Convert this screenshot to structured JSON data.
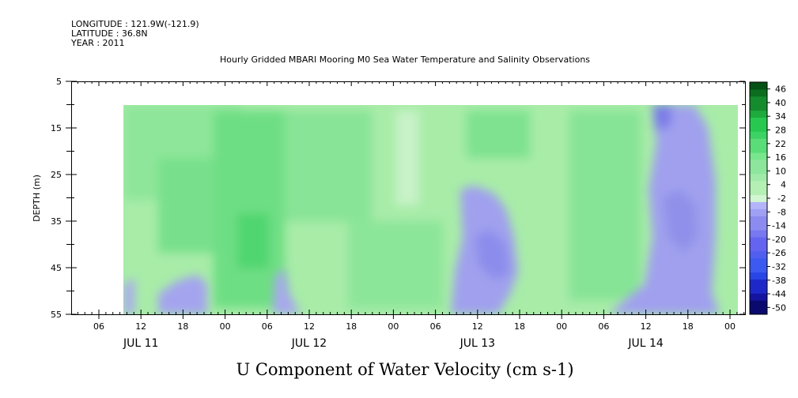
{
  "header": {
    "longitude": "LONGITUDE : 121.9W(-121.9)",
    "latitude": "LATITUDE : 36.8N",
    "year": "YEAR : 2011"
  },
  "chart_data": {
    "type": "heatmap",
    "title": "Hourly Gridded MBARI Mooring M0 Sea Water Temperature and Salinity Observations",
    "xlabel": "U Component of Water Velocity (cm s-1)",
    "ylabel": "DEPTH (m)",
    "ylim": [
      5,
      55
    ],
    "y_ticks": [
      5,
      15,
      25,
      35,
      45,
      55
    ],
    "y_inverted": true,
    "hour_ticks": [
      "06",
      "12",
      "18",
      "00",
      "06",
      "12",
      "18",
      "00",
      "06",
      "12",
      "18",
      "00",
      "06",
      "12",
      "18",
      "00"
    ],
    "date_labels": [
      "JUL 11",
      "JUL 12",
      "JUL 13",
      "JUL 14"
    ],
    "colorbar": {
      "levels": [
        -50,
        -44,
        -38,
        -32,
        -26,
        -20,
        -14,
        -8,
        -2,
        4,
        10,
        16,
        22,
        28,
        34,
        40,
        46
      ],
      "colors_negative": [
        "#0a0a6e",
        "#1414a0",
        "#1e28c8",
        "#2846e6",
        "#3c5af0",
        "#505ff0",
        "#6464f0",
        "#7878f0",
        "#8c8cf0",
        "#a0a0f5",
        "#b4b4fa"
      ],
      "colors_positive": [
        "#b4f0b4",
        "#a0ebaa",
        "#8ce69b",
        "#78e68c",
        "#5adc78",
        "#3cd264",
        "#28c850",
        "#1eaa3c",
        "#148c2d",
        "#0a6e1e",
        "#055014"
      ]
    },
    "features": [
      {
        "region": "JUL 11 12-20, 47-55 m",
        "value": -2
      },
      {
        "region": "JUL 12 06-08, 47-55 m",
        "value": -2
      },
      {
        "region": "JUL 13 08-17, 27-55 m",
        "value": -6
      },
      {
        "region": "JUL 14 12-23, 10-55 m",
        "value": -6
      }
    ]
  }
}
